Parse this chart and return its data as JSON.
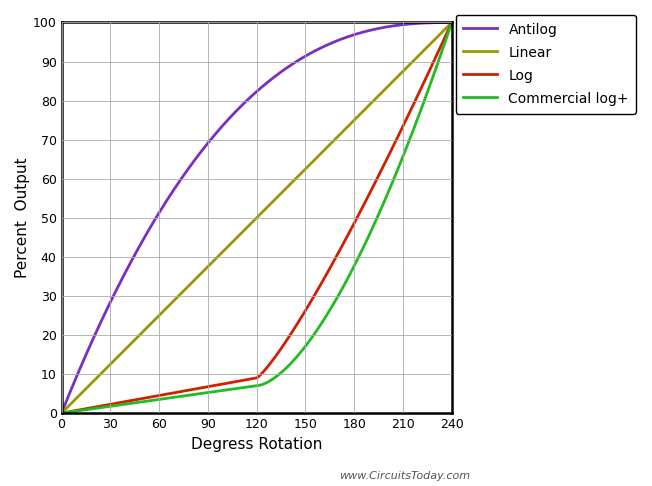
{
  "title": "",
  "xlabel": "Degress Rotation",
  "ylabel": "Percent  Output",
  "xlim": [
    0,
    240
  ],
  "ylim": [
    0,
    100
  ],
  "xticks": [
    0,
    30,
    60,
    90,
    120,
    150,
    180,
    210,
    240
  ],
  "yticks": [
    0,
    10,
    20,
    30,
    40,
    50,
    60,
    70,
    80,
    90,
    100
  ],
  "watermark": "www.CircuitsToday.com",
  "legend": [
    {
      "label": "Antilog",
      "color": "#7B2FBE"
    },
    {
      "label": "Linear",
      "color": "#999900"
    },
    {
      "label": "Log",
      "color": "#CC2200"
    },
    {
      "label": "Commercial log+",
      "color": "#22BB22"
    }
  ],
  "antilog_power": 2.5,
  "log_k": 4.394,
  "comm_k": 5.886,
  "background_color": "#ffffff",
  "grid_color": "#aaaaaa",
  "linewidth": 2.0
}
